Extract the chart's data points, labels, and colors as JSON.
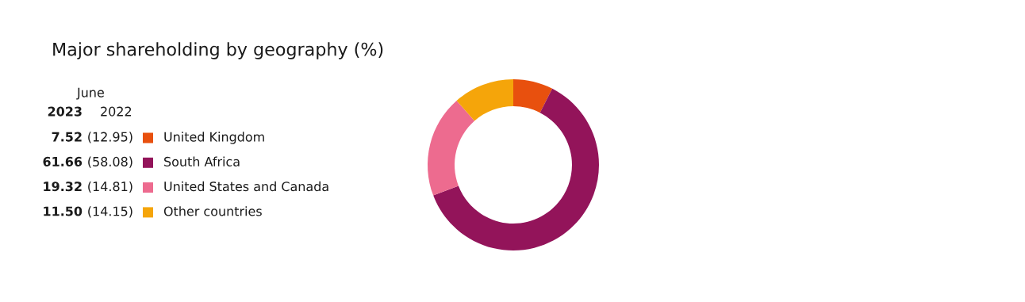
{
  "chart_data": {
    "type": "donut",
    "title": "Major shareholding by geography (%)",
    "categories": [
      "United Kingdom",
      "South Africa",
      "United States and Canada",
      "Other countries"
    ],
    "values": [
      7.52,
      61.66,
      19.32,
      11.5
    ],
    "value_labels": [
      "7.52",
      "61.66",
      "19.32",
      "11.50"
    ],
    "colors": [
      "#e8500e",
      "#93145a",
      "#ed6b8f",
      "#f5a50a"
    ],
    "legend": "left",
    "annotations": [
      "June",
      "2023",
      "2022",
      "(12.95)",
      "(58.08)",
      "(14.81)",
      "(14.15)"
    ]
  }
}
